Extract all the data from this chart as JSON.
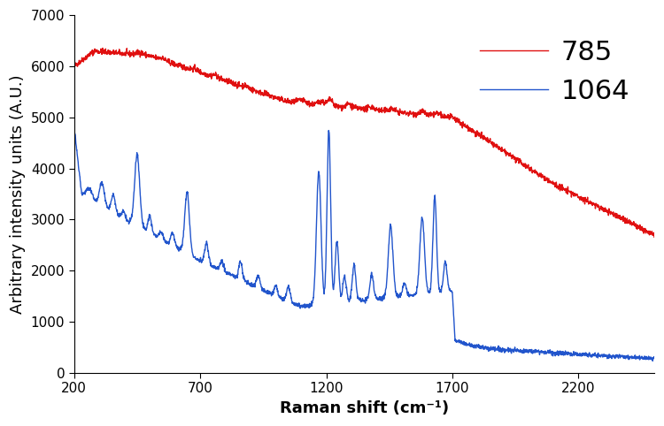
{
  "xlabel": "Raman shift (cm⁻¹)",
  "ylabel": "Arbitrary intensity units (A.U.)",
  "xlim": [
    200,
    2500
  ],
  "ylim": [
    0,
    7000
  ],
  "xticks": [
    200,
    700,
    1200,
    1700,
    2200
  ],
  "yticks": [
    0,
    1000,
    2000,
    3000,
    4000,
    5000,
    6000,
    7000
  ],
  "legend_785": "785",
  "legend_1064": "1064",
  "color_785": "#e01010",
  "color_1064": "#2255cc",
  "linewidth": 1.0,
  "legend_fontsize": 22,
  "axis_label_fontsize": 13,
  "tick_fontsize": 11,
  "background": "#ffffff"
}
